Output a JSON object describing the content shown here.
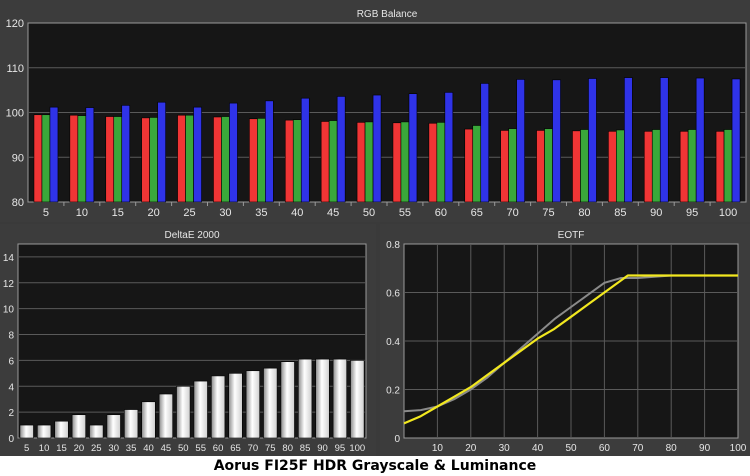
{
  "caption": "Aorus FI25F HDR Grayscale & Luminance",
  "colors": {
    "red": "#f03535",
    "green": "#3aa83a",
    "blue": "#2f33e8",
    "eotf_measured": "#f2e81f",
    "eotf_target": "#8a8a8a",
    "plot_bg": "#161616",
    "grid": "#5a5a5a"
  },
  "chart_data": [
    {
      "type": "bar",
      "title": "RGB Balance",
      "categories": [
        "5",
        "10",
        "15",
        "20",
        "25",
        "30",
        "35",
        "40",
        "45",
        "50",
        "55",
        "60",
        "65",
        "70",
        "75",
        "80",
        "85",
        "90",
        "95",
        "100"
      ],
      "series": [
        {
          "name": "",
          "color": "#f03535",
          "values": [
            99.5,
            99.4,
            99.1,
            98.8,
            99.4,
            99.0,
            98.6,
            98.3,
            98.0,
            97.8,
            97.7,
            97.6,
            96.3,
            96.0,
            96.0,
            95.9,
            95.8,
            95.8,
            95.8,
            95.8
          ]
        },
        {
          "name": "",
          "color": "#3aa83a",
          "values": [
            99.5,
            99.3,
            99.1,
            98.9,
            99.4,
            99.1,
            98.7,
            98.4,
            98.2,
            97.9,
            97.9,
            97.8,
            97.1,
            96.4,
            96.4,
            96.2,
            96.1,
            96.2,
            96.2,
            96.2
          ]
        },
        {
          "name": "",
          "color": "#2f33e8",
          "values": [
            101.2,
            101.1,
            101.6,
            102.3,
            101.2,
            102.1,
            102.6,
            103.2,
            103.6,
            103.9,
            104.2,
            104.5,
            106.5,
            107.4,
            107.3,
            107.6,
            107.8,
            107.8,
            107.7,
            107.5
          ]
        }
      ],
      "ylim": [
        80,
        120
      ],
      "yticks": [
        80,
        90,
        100,
        110,
        120
      ],
      "grid": true
    },
    {
      "type": "bar",
      "title": "DeltaE 2000",
      "categories": [
        "5",
        "10",
        "15",
        "20",
        "25",
        "30",
        "35",
        "40",
        "45",
        "50",
        "55",
        "60",
        "65",
        "70",
        "75",
        "80",
        "85",
        "90",
        "95",
        "100"
      ],
      "values": [
        1.0,
        1.0,
        1.3,
        1.8,
        1.0,
        1.8,
        2.2,
        2.8,
        3.4,
        4.0,
        4.4,
        4.8,
        5.0,
        5.2,
        5.4,
        5.9,
        6.1,
        6.1,
        6.1,
        6.0
      ],
      "ylim": [
        0,
        15
      ],
      "yticks": [
        0,
        2,
        4,
        6,
        8,
        10,
        12,
        14
      ],
      "grid": true
    },
    {
      "type": "line",
      "title": "EOTF",
      "xlim": [
        0,
        100
      ],
      "ylim": [
        0,
        0.8
      ],
      "xticks": [
        10,
        20,
        30,
        40,
        50,
        60,
        70,
        80,
        90,
        100
      ],
      "yticks": [
        0,
        0.2,
        0.4,
        0.6,
        0.8
      ],
      "grid": true,
      "series": [
        {
          "name": "",
          "color": "#8a8a8a",
          "x": [
            0,
            5,
            10,
            15,
            20,
            25,
            30,
            35,
            40,
            45,
            50,
            55,
            60,
            65,
            70,
            80,
            90,
            100
          ],
          "y": [
            0.11,
            0.115,
            0.13,
            0.16,
            0.2,
            0.25,
            0.31,
            0.37,
            0.43,
            0.49,
            0.54,
            0.59,
            0.64,
            0.66,
            0.66,
            0.67,
            0.67,
            0.67
          ]
        },
        {
          "name": "",
          "color": "#f2e81f",
          "x": [
            0,
            5,
            10,
            15,
            20,
            25,
            30,
            35,
            40,
            45,
            50,
            55,
            60,
            67,
            70,
            80,
            90,
            100
          ],
          "y": [
            0.06,
            0.09,
            0.13,
            0.17,
            0.21,
            0.26,
            0.31,
            0.36,
            0.41,
            0.45,
            0.5,
            0.55,
            0.6,
            0.67,
            0.67,
            0.67,
            0.67,
            0.67
          ]
        }
      ]
    }
  ]
}
